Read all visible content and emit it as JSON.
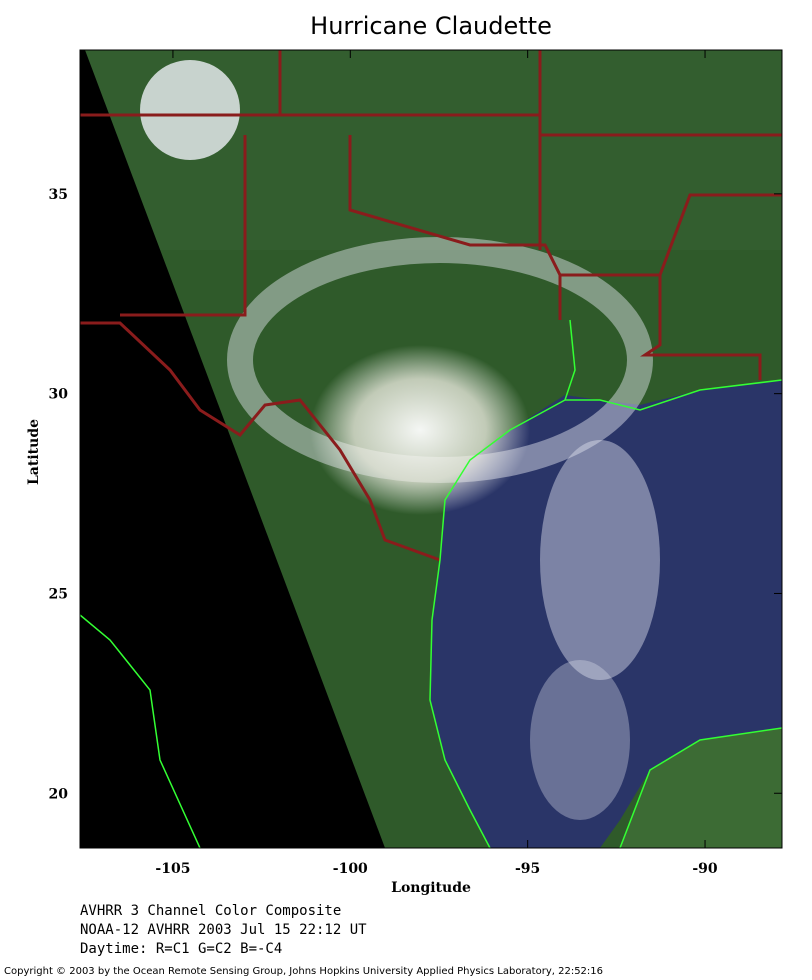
{
  "title": "Hurricane Claudette",
  "map": {
    "xlabel": "Longitude",
    "ylabel": "Latitude",
    "xlim": [
      -107.62,
      -87.83
    ],
    "ylim": [
      18.63,
      38.6
    ],
    "xticks": [
      -105,
      -100,
      -95,
      -90
    ],
    "yticks": [
      20,
      25,
      30,
      35
    ]
  },
  "captions": [
    "AVHRR 3 Channel Color Composite",
    "NOAA-12 AVHRR 2003 Jul 15 22:12 UT",
    "Daytime: R=C1 G=C2 B=-C4"
  ],
  "copyright": "Copyright © 2003 by the Ocean Remote Sensing Group, Johns Hopkins University Applied Physics Laboratory, 22:52:16"
}
